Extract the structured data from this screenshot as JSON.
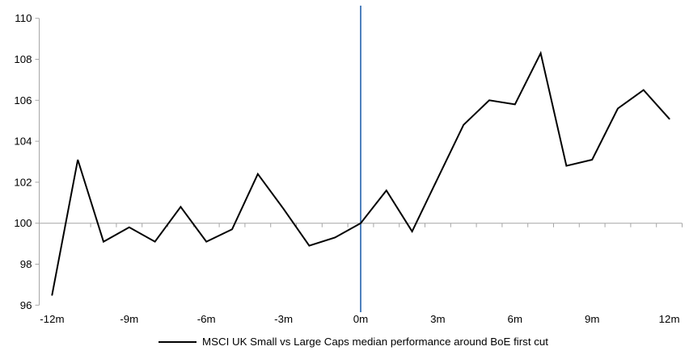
{
  "legend": {
    "label": "MSCI UK Small vs Large Caps median performance around BoE first cut"
  },
  "chart_data": {
    "type": "line",
    "title": "",
    "xlabel": "",
    "ylabel": "",
    "x": [
      -12,
      -11,
      -10,
      -9,
      -8,
      -7,
      -6,
      -5,
      -4,
      -3,
      -2,
      -1,
      0,
      1,
      2,
      3,
      4,
      5,
      6,
      7,
      8,
      9,
      10,
      11,
      12
    ],
    "series": [
      {
        "name": "MSCI UK Small vs Large Caps median performance around BoE first cut",
        "values": [
          96.5,
          103.1,
          99.1,
          99.8,
          99.1,
          100.8,
          99.1,
          99.7,
          102.4,
          100.7,
          98.9,
          99.3,
          100.0,
          101.6,
          99.6,
          102.2,
          104.8,
          106.0,
          105.8,
          108.3,
          102.8,
          103.1,
          105.6,
          106.5,
          105.1
        ]
      }
    ],
    "xlim": [
      -12.5,
      12.5
    ],
    "ylim": [
      96,
      110
    ],
    "y_ticks": [
      96,
      98,
      100,
      102,
      104,
      106,
      108,
      110
    ],
    "x_tick_label_positions": [
      -12,
      -9,
      -6,
      -3,
      0,
      3,
      6,
      9,
      12
    ],
    "x_tick_labels": [
      "-12m",
      "-9m",
      "-6m",
      "-3m",
      "0m",
      "3m",
      "6m",
      "9m",
      "12m"
    ],
    "x_minor_tick_step_months": 1,
    "x_axis_crosses_at": 100,
    "event_line_x": 0,
    "grid": "off",
    "legend_position": "bottom",
    "colors": {
      "series": "#000000",
      "event_line": "#4F81BD",
      "y_axis": "#A6A6A6",
      "x_axis": "#A6A6A6",
      "tick_text": "#000000"
    }
  }
}
